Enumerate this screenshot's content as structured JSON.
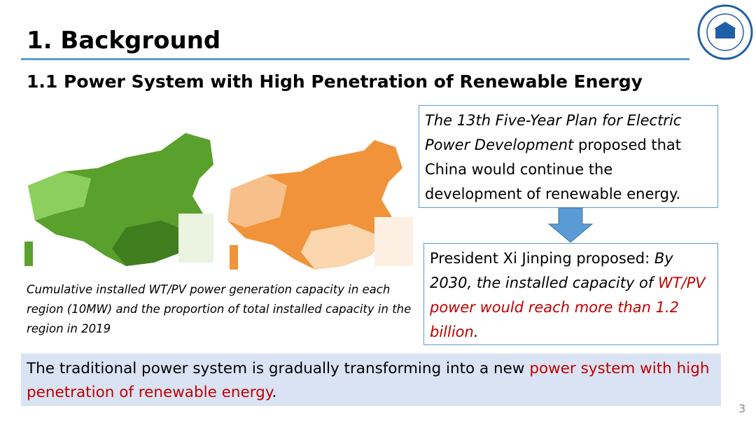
{
  "header": {
    "title": "1. Background",
    "subtitle": "1.1 Power System with High Penetration of Renewable Energy"
  },
  "figure": {
    "caption": "Cumulative installed WT/PV power generation capacity in each region (10MW) and the proportion of total installed capacity in the region in 2019"
  },
  "box1": {
    "italic": "The 13th Five-Year Plan for Electric Power  Development",
    "rest": " proposed that China would continue the development of renewable energy."
  },
  "box2": {
    "lead": "President Xi Jinping proposed: ",
    "italic": "By 2030, the installed capacity of ",
    "highlight": "WT/PV power would reach more than 1.2 billion",
    "end": "."
  },
  "footer": {
    "lead": "The traditional power system is gradually transforming into a new ",
    "highlight": "power system with high penetration of renewable energy",
    "end": "."
  },
  "page_number": "3"
}
